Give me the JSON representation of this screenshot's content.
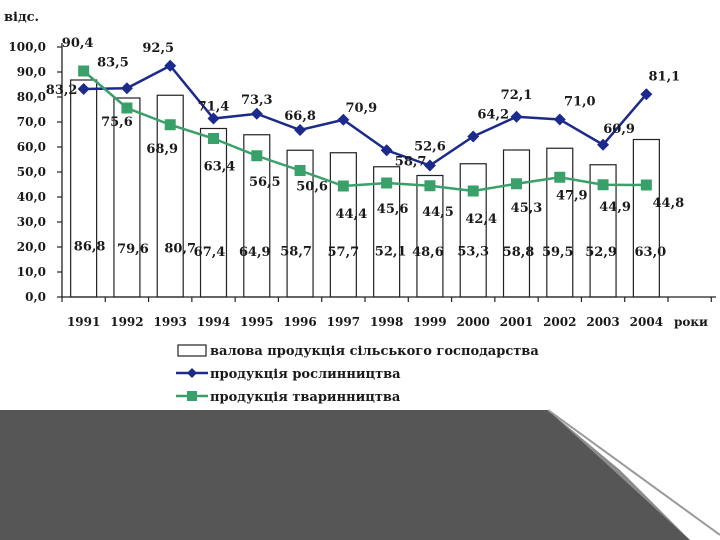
{
  "chart_data": {
    "type": "bar+line",
    "ylabel": "відс.",
    "xlabel": "роки",
    "ylim": [
      0,
      100
    ],
    "ytick_labels": [
      "0,0",
      "10,0",
      "20,0",
      "30,0",
      "40,0",
      "50,0",
      "60,0",
      "70,0",
      "80,0",
      "90,0",
      "100,0"
    ],
    "categories": [
      "1991",
      "1992",
      "1993",
      "1994",
      "1995",
      "1996",
      "1997",
      "1998",
      "1999",
      "2000",
      "2001",
      "2002",
      "2003",
      "2004"
    ],
    "series": [
      {
        "name": "валова продукція сільського господарства",
        "kind": "bar",
        "values": [
          86.8,
          79.6,
          80.7,
          67.4,
          64.9,
          58.7,
          57.7,
          52.1,
          48.6,
          53.3,
          58.8,
          59.5,
          52.9,
          63.0
        ],
        "labels": [
          "86,8",
          "79,6",
          "80,7",
          "67,4",
          "64,9",
          "58,7",
          "57,7",
          "52,1",
          "48,6",
          "53,3",
          "58,8",
          "59,5",
          "52,9",
          "63,0"
        ]
      },
      {
        "name": "продукція рослинництва",
        "kind": "line",
        "color": "#1c2a8c",
        "marker": "diamond",
        "values": [
          83.2,
          83.5,
          92.5,
          71.4,
          73.3,
          66.8,
          70.9,
          58.7,
          52.6,
          64.2,
          72.1,
          71.0,
          60.9,
          81.1
        ],
        "labels": [
          "83,2",
          "83,5",
          "92,5",
          "71,4",
          "73,3",
          "66,8",
          "70,9",
          "58,7",
          "52,6",
          "64,2",
          "72,1",
          "71,0",
          "60,9",
          "81,1"
        ]
      },
      {
        "name": "продукція тваринництва",
        "kind": "line",
        "color": "#3aa06a",
        "marker": "square",
        "values": [
          90.4,
          75.6,
          68.9,
          63.4,
          56.5,
          50.6,
          44.4,
          45.6,
          44.5,
          42.4,
          45.3,
          47.9,
          44.9,
          44.8
        ],
        "labels": [
          "90,4",
          "75,6",
          "68,9",
          "63,4",
          "56,5",
          "50,6",
          "44,4",
          "45,6",
          "44,5",
          "42,4",
          "45,3",
          "47,9",
          "44,9",
          "44,8"
        ]
      }
    ],
    "legend": "bottom"
  },
  "colors": {
    "bar_fill": "#ffffff",
    "bar_stroke": "#222222",
    "deco_dark": "#555555",
    "deco_light": "#8a8a8a"
  }
}
